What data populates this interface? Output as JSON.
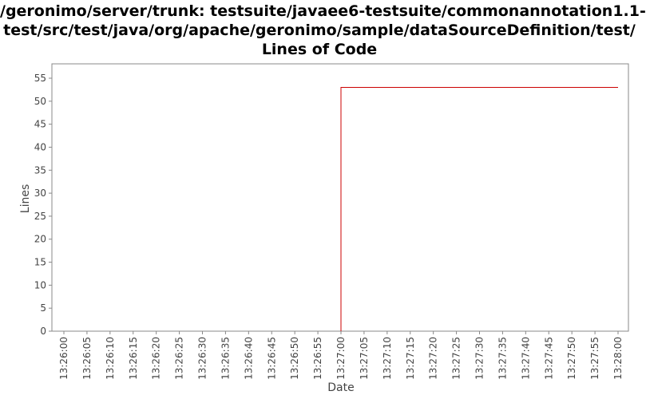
{
  "chart_data": {
    "type": "line",
    "title_lines": [
      "/geronimo/server/trunk: testsuite/javaee6-testsuite/commonannotation1.1-",
      "test/src/test/java/org/apache/geronimo/sample/dataSourceDefinition/test/",
      "Lines of Code"
    ],
    "xlabel": "Date",
    "ylabel": "Lines",
    "ylim": [
      0,
      55
    ],
    "y_ticks": [
      "0",
      "5",
      "10",
      "15",
      "20",
      "25",
      "30",
      "35",
      "40",
      "45",
      "50",
      "55"
    ],
    "x_ticks": [
      "13:26:00",
      "13:26:05",
      "13:26:10",
      "13:26:15",
      "13:26:20",
      "13:26:25",
      "13:26:30",
      "13:26:35",
      "13:26:40",
      "13:26:45",
      "13:26:50",
      "13:26:55",
      "13:27:00",
      "13:27:05",
      "13:27:10",
      "13:27:15",
      "13:27:20",
      "13:27:25",
      "13:27:30",
      "13:27:35",
      "13:27:40",
      "13:27:45",
      "13:27:50",
      "13:27:55",
      "13:28:00"
    ],
    "xlim": [
      "13:26:00",
      "13:28:00"
    ],
    "step": true,
    "grid": false,
    "series": [
      {
        "color": "#cc0000",
        "points": [
          {
            "x": "13:27:00",
            "y": 0
          },
          {
            "x": "13:27:00",
            "y": 53
          },
          {
            "x": "13:28:00",
            "y": 53
          }
        ]
      }
    ]
  }
}
